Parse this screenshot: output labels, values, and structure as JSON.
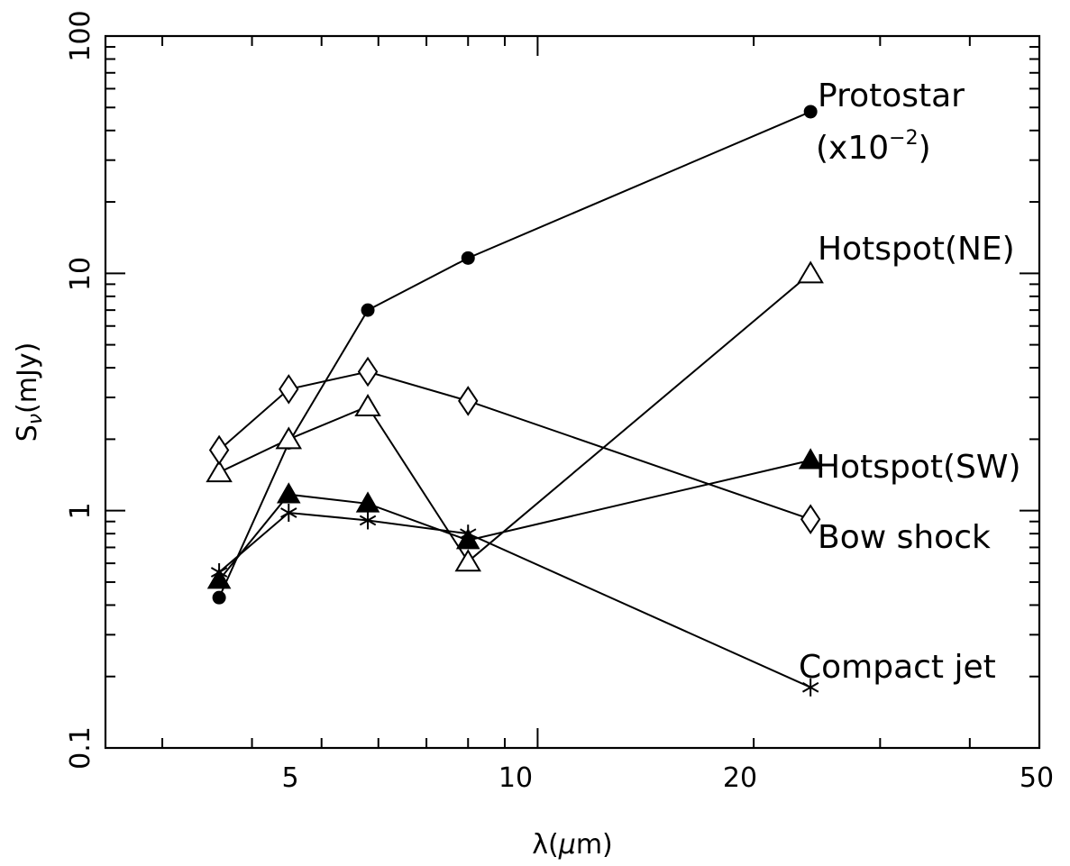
{
  "chart_data": {
    "type": "scatter",
    "title": "",
    "xlabel": "λ(μm)",
    "ylabel": "Sν(mJy)",
    "xscale": "log",
    "yscale": "log",
    "xlim": [
      2.5,
      50
    ],
    "ylim": [
      0.1,
      100
    ],
    "xticks": [
      5,
      10,
      20,
      50
    ],
    "yticks": [
      0.1,
      1,
      10,
      100
    ],
    "grid": false,
    "series": [
      {
        "name": "Protostar (x10^-2)",
        "marker": "filled-circle",
        "x": [
          3.6,
          4.5,
          5.8,
          8.0,
          24.0
        ],
        "y": [
          0.43,
          1.93,
          7.0,
          11.6,
          48.0
        ]
      },
      {
        "name": "Hotspot(NE)",
        "marker": "open-triangle",
        "x": [
          3.6,
          4.5,
          5.8,
          8.0,
          24.0
        ],
        "y": [
          1.45,
          2.0,
          2.75,
          0.61,
          10.0
        ]
      },
      {
        "name": "Hotspot(SW)",
        "marker": "filled-triangle",
        "x": [
          3.6,
          4.5,
          5.8,
          8.0,
          24.0
        ],
        "y": [
          0.51,
          1.17,
          1.07,
          0.75,
          1.63
        ]
      },
      {
        "name": "Bow shock",
        "marker": "open-diamond",
        "x": [
          3.6,
          4.5,
          5.8,
          8.0,
          24.0
        ],
        "y": [
          1.8,
          3.25,
          3.85,
          2.9,
          0.92
        ]
      },
      {
        "name": "Compact jet",
        "marker": "asterisk",
        "x": [
          3.6,
          4.5,
          5.8,
          8.0,
          24.0
        ],
        "y": [
          0.55,
          0.98,
          0.91,
          0.8,
          0.18
        ]
      }
    ],
    "annotations": {
      "protostar_line1": "Protostar",
      "protostar_scale_open": "(x10",
      "protostar_scale_exp": "−2",
      "protostar_scale_close": ")",
      "hotspot_ne": "Hotspot(NE)",
      "hotspot_sw": "Hotspot(SW)",
      "bow_shock": "Bow shock",
      "compact_jet": "Compact jet"
    },
    "tick_labels": {
      "x": [
        "5",
        "10",
        "20",
        "50"
      ],
      "y": [
        "0.1",
        "1",
        "10",
        "100"
      ]
    },
    "axis_labels": {
      "x_lambda": "λ(",
      "x_mu": "μ",
      "x_rest": "m)",
      "y_s": "S",
      "y_nu": "ν",
      "y_rest": "(mJy)"
    }
  }
}
